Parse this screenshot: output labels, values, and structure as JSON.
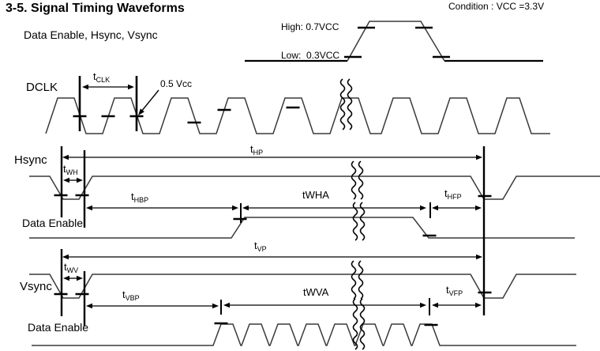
{
  "header": {
    "title": "3-5. Signal Timing Waveforms",
    "subtitle": "Data Enable, Hsync, Vsync",
    "condition": "Condition : VCC =3.3V"
  },
  "reference_levels": {
    "high_label": "High: 0.7VCC",
    "low_label": "Low:  0.3VCC",
    "half_vcc_label": "0.5 Vcc"
  },
  "signals": {
    "dclk": "DCLK",
    "hsync": "Hsync",
    "vsync": "Vsync",
    "data_enable_hsync": "Data Enable",
    "data_enable_vsync": "Data Enable"
  },
  "timings": {
    "tclk": {
      "main": "t",
      "sub": "CLK"
    },
    "thp": {
      "main": "t",
      "sub": "HP"
    },
    "twh": {
      "main": "t",
      "sub": "WH"
    },
    "thbp": {
      "main": "t",
      "sub": "HBP"
    },
    "twha": {
      "main": "tWHA",
      "sub": ""
    },
    "thfp": {
      "main": "t",
      "sub": "HFP"
    },
    "tvp": {
      "main": "t",
      "sub": "VP"
    },
    "twv": {
      "main": "t",
      "sub": "WV"
    },
    "tvbp": {
      "main": "t",
      "sub": "VBP"
    },
    "twva": {
      "main": "tWVA",
      "sub": ""
    },
    "tvfp": {
      "main": "t",
      "sub": "VFP"
    }
  },
  "colors": {
    "line": "#3a3a3a",
    "accent": "#000000",
    "background": "#ffffff"
  }
}
